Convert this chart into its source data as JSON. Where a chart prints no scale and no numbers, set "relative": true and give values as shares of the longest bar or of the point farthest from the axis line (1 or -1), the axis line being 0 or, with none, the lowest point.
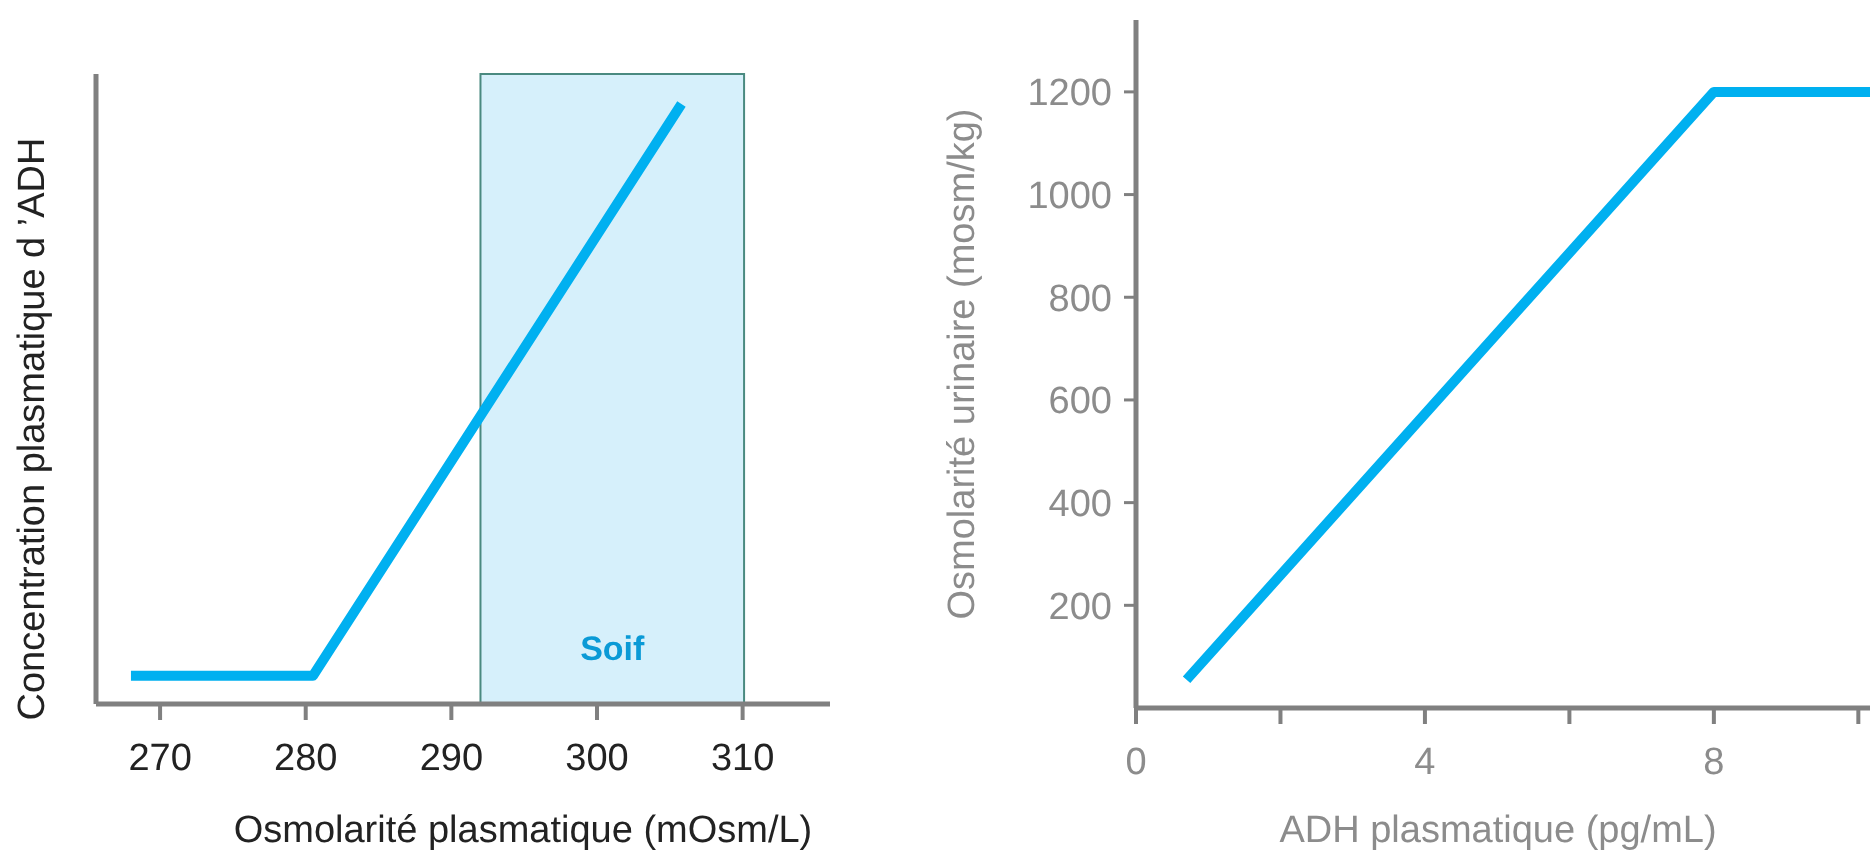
{
  "chart_data": [
    {
      "type": "line",
      "xlabel": "Osmolarité plasmatique (mOsm/L)",
      "ylabel": "Concentration plasmatique d ’ADH",
      "relative": true,
      "xlim": [
        265.6,
        316
      ],
      "xticks": [
        270,
        280,
        290,
        300,
        310
      ],
      "series": [
        {
          "color": "#00b0f0",
          "x": [
            268,
            280.5,
            305.8
          ],
          "values": [
            0.047,
            0.047,
            1
          ]
        }
      ],
      "bands": [
        {
          "axis": "x",
          "from": 292,
          "to": 310.1,
          "label": "Soif",
          "color": "#d6f0fb"
        }
      ]
    },
    {
      "type": "line",
      "xlabel": "ADH plasmatique (pg/mL)",
      "ylabel": "Osmolarité urinaire (mosm/kg)",
      "xlim": [
        0,
        10.3
      ],
      "xticks": [
        0,
        {
          "value": 2,
          "label": null
        },
        4,
        {
          "value": 6,
          "label": null
        },
        8,
        {
          "value": 10,
          "label": null
        }
      ],
      "ylim": [
        0,
        1340
      ],
      "yticks": [
        200,
        400,
        600,
        800,
        1000,
        1200
      ],
      "series": [
        {
          "color": "#00b0f0",
          "x": [
            0.7,
            8,
            10.3
          ],
          "values": [
            55,
            1200,
            1200
          ]
        }
      ]
    }
  ]
}
